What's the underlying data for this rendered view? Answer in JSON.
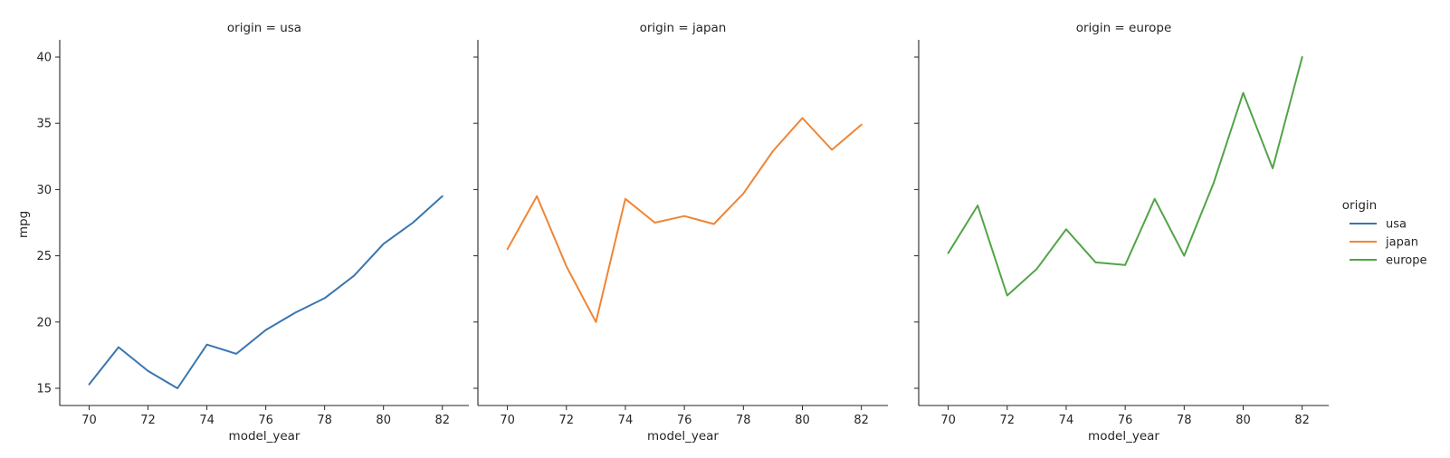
{
  "chart_data": {
    "type": "line",
    "x_key": "model_year",
    "y_key": "mpg",
    "xlabel": "model_year",
    "ylabel": "mpg",
    "xlim": [
      69.0,
      82.9
    ],
    "ylim": [
      13.7,
      41.3
    ],
    "xticks": [
      70,
      72,
      74,
      76,
      78,
      80,
      82
    ],
    "yticks": [
      15,
      20,
      25,
      30,
      35,
      40
    ],
    "sharey": true,
    "grid": false,
    "legend": {
      "title": "origin",
      "placement": "right",
      "entries": [
        {
          "label": "usa",
          "color": "#3a75b0"
        },
        {
          "label": "japan",
          "color": "#ef8535"
        },
        {
          "label": "europe",
          "color": "#52a447"
        }
      ]
    },
    "panels": [
      {
        "title": "origin = usa",
        "series": {
          "name": "usa",
          "color": "#3a75b0",
          "x": [
            70,
            71,
            72,
            73,
            74,
            75,
            76,
            77,
            78,
            79,
            80,
            81,
            82
          ],
          "y": [
            15.3,
            18.1,
            16.3,
            15.0,
            18.3,
            17.6,
            19.4,
            20.7,
            21.8,
            23.5,
            25.9,
            27.5,
            29.5
          ]
        }
      },
      {
        "title": "origin = japan",
        "series": {
          "name": "japan",
          "color": "#ef8535",
          "x": [
            70,
            71,
            72,
            73,
            74,
            75,
            76,
            77,
            78,
            79,
            80,
            81,
            82
          ],
          "y": [
            25.5,
            29.5,
            24.2,
            20.0,
            29.3,
            27.5,
            28.0,
            27.4,
            29.7,
            32.9,
            35.4,
            33.0,
            34.9
          ]
        }
      },
      {
        "title": "origin = europe",
        "series": {
          "name": "europe",
          "color": "#52a447",
          "x": [
            70,
            71,
            72,
            73,
            74,
            75,
            76,
            77,
            78,
            79,
            80,
            81,
            82
          ],
          "y": [
            25.2,
            28.8,
            22.0,
            24.0,
            27.0,
            24.5,
            24.3,
            29.3,
            25.0,
            30.5,
            37.3,
            31.6,
            40.0
          ]
        }
      }
    ]
  }
}
